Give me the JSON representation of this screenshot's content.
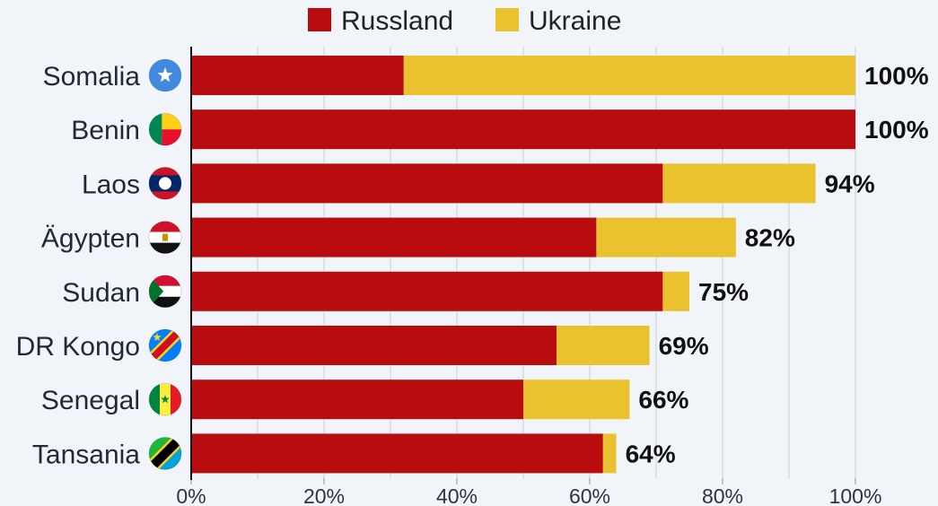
{
  "chart_data": {
    "type": "bar",
    "orientation": "horizontal",
    "stacked": true,
    "categories": [
      "Somalia",
      "Benin",
      "Laos",
      "Ägypten",
      "Sudan",
      "DR Kongo",
      "Senegal",
      "Tansania"
    ],
    "series": [
      {
        "name": "Russland",
        "color": "#b80c0e",
        "values": [
          32,
          100,
          71,
          61,
          71,
          55,
          50,
          62
        ]
      },
      {
        "name": "Ukraine",
        "color": "#eac12f",
        "values": [
          68,
          0,
          23,
          21,
          4,
          14,
          16,
          2
        ]
      }
    ],
    "totals": [
      "100%",
      "100%",
      "94%",
      "82%",
      "75%",
      "69%",
      "66%",
      "64%"
    ],
    "flags": [
      "somalia-flag-icon",
      "benin-flag-icon",
      "laos-flag-icon",
      "egypt-flag-icon",
      "sudan-flag-icon",
      "dr-congo-flag-icon",
      "senegal-flag-icon",
      "tanzania-flag-icon"
    ],
    "x_ticks": [
      "0%",
      "20%",
      "40%",
      "60%",
      "80%",
      "100%"
    ],
    "xlim": [
      0,
      100
    ],
    "grid": true,
    "legend": "top-center",
    "title": "",
    "xlabel": "",
    "ylabel": ""
  }
}
